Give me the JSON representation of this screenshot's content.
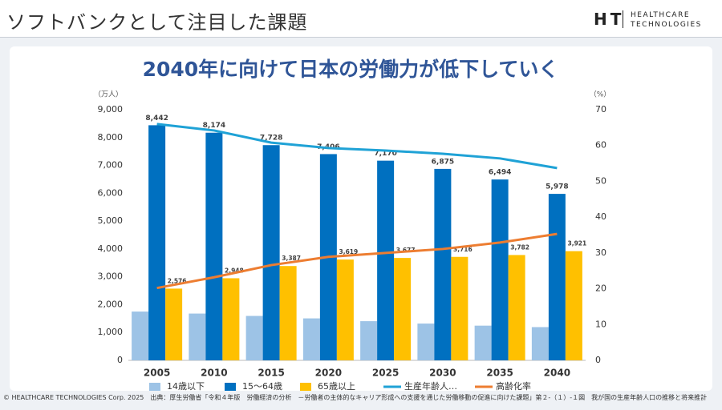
{
  "header": {
    "title": "ソフトバンクとして注目した課題",
    "logo_mark": "HT",
    "logo_line1": "HEALTHCARE",
    "logo_line2": "TECHNOLOGIES"
  },
  "chart_data": {
    "type": "bar",
    "title": "2040年に向けて日本の労働力が低下していく",
    "y_label": "（万人）",
    "y2_label": "（%）",
    "categories": [
      "2005",
      "2010",
      "2015",
      "2020",
      "2025",
      "2030",
      "2035",
      "2040"
    ],
    "series": [
      {
        "name": "14歳以下",
        "color": "#9dc3e6",
        "values": [
          1752,
          1680,
          1595,
          1507,
          1407,
          1321,
          1246,
          1194
        ]
      },
      {
        "name": "15〜64歳",
        "color": "#0070c0",
        "values": [
          8442,
          8174,
          7728,
          7406,
          7170,
          6875,
          6494,
          5978
        ],
        "value_labels": [
          "8,442",
          "8,174",
          "7,728",
          "7,406",
          "7,170",
          "6,875",
          "6,494",
          "5,978"
        ]
      },
      {
        "name": "65歳以上",
        "color": "#ffc000",
        "values": [
          2576,
          2948,
          3387,
          3619,
          3677,
          3716,
          3782,
          3921
        ],
        "value_labels": [
          "2,576",
          "2,948",
          "3,387",
          "3,619",
          "3,677",
          "3,716",
          "3,782",
          "3,921"
        ]
      },
      {
        "name": "生産年齢人…",
        "type": "line",
        "axis": "y2",
        "color": "#1fa2d6",
        "values": [
          66.0,
          64.2,
          60.8,
          59.3,
          58.6,
          57.7,
          56.4,
          53.7
        ]
      },
      {
        "name": "高齢化率",
        "type": "line",
        "axis": "y2",
        "color": "#ed7d31",
        "values": [
          20.2,
          23.2,
          26.6,
          28.9,
          30.0,
          31.1,
          32.9,
          35.3
        ]
      }
    ],
    "ylim": [
      0,
      9000
    ],
    "yticks": [
      0,
      {
        "value": 1000,
        "label": "1,000"
      },
      {
        "value": 2000,
        "label": "2,000"
      },
      {
        "value": 3000,
        "label": "3,000"
      },
      {
        "value": 4000,
        "label": "4,000"
      },
      {
        "value": 5000,
        "label": "5,000"
      },
      {
        "value": 6000,
        "label": "6,000"
      },
      {
        "value": 7000,
        "label": "7,000"
      },
      {
        "value": 8000,
        "label": "8,000"
      },
      {
        "value": 9000,
        "label": "9,000"
      }
    ],
    "y2lim": [
      0,
      70
    ],
    "y2ticks": [
      0,
      10,
      20,
      30,
      40,
      50,
      60,
      70
    ],
    "grid": false,
    "legend": "bottom"
  },
  "footer": {
    "copyright": "© HEALTHCARE TECHNOLOGIES Corp. 2025",
    "source": "出典：厚生労働省「令和４年版　労働経済の分析　－労働者の主体的なキャリア形成への支援を通じた労働移動の促進に向けた課題」第２-（１）-１図　我が国の生産年齢人口の推移と将来推計"
  }
}
